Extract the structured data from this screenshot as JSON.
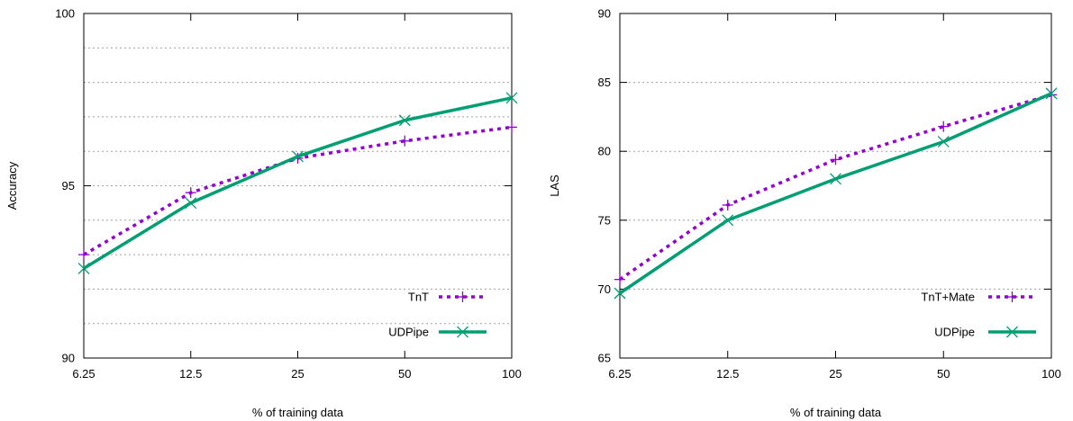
{
  "colors": {
    "tnt": "#9400d3",
    "udpipe": "#009e73",
    "grid": "#a0a0a0",
    "frame": "#000000"
  },
  "chart_data": [
    {
      "type": "line",
      "xscale": "log",
      "x": [
        6.25,
        12.5,
        25,
        50,
        100
      ],
      "xlabel": "% of training data",
      "ylabel": "Accuracy",
      "ylim": [
        90,
        100
      ],
      "xticks": [
        "6.25",
        "12.5",
        "25",
        "50",
        "100"
      ],
      "yticks": [
        "90",
        "95",
        "100"
      ],
      "ytick_values": [
        90,
        95,
        100
      ],
      "grid_y": [
        91,
        92,
        93,
        94,
        95,
        96,
        97,
        98,
        99
      ],
      "legend_position": "bottom-right",
      "series": [
        {
          "name": "TnT",
          "values": [
            93.0,
            94.8,
            95.8,
            96.3,
            96.7
          ],
          "style": "dotted",
          "marker": "plus",
          "color": "#9400d3"
        },
        {
          "name": "UDPipe",
          "values": [
            92.6,
            94.5,
            95.85,
            96.9,
            97.55
          ],
          "style": "solid",
          "marker": "cross",
          "color": "#009e73"
        }
      ]
    },
    {
      "type": "line",
      "xscale": "log",
      "x": [
        6.25,
        12.5,
        25,
        50,
        100
      ],
      "xlabel": "% of training data",
      "ylabel": "LAS",
      "ylim": [
        65,
        90
      ],
      "xticks": [
        "6.25",
        "12.5",
        "25",
        "50",
        "100"
      ],
      "yticks": [
        "65",
        "70",
        "75",
        "80",
        "85",
        "90"
      ],
      "ytick_values": [
        65,
        70,
        75,
        80,
        85,
        90
      ],
      "grid_y": [
        70,
        75,
        80,
        85
      ],
      "legend_position": "bottom-right",
      "series": [
        {
          "name": "TnT+Mate",
          "values": [
            70.7,
            76.1,
            79.4,
            81.8,
            84.1
          ],
          "style": "dotted",
          "marker": "plus",
          "color": "#9400d3"
        },
        {
          "name": "UDPipe",
          "values": [
            69.7,
            75.0,
            78.0,
            80.7,
            84.2
          ],
          "style": "solid",
          "marker": "cross",
          "color": "#009e73"
        }
      ]
    }
  ]
}
